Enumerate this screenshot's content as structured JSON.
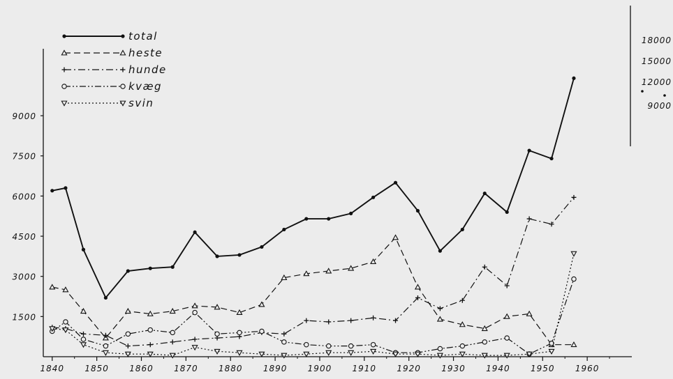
{
  "chart_data": {
    "type": "line",
    "x": [
      1840,
      1843,
      1847,
      1852,
      1857,
      1862,
      1867,
      1872,
      1877,
      1882,
      1887,
      1892,
      1897,
      1902,
      1907,
      1912,
      1917,
      1922,
      1927,
      1932,
      1937,
      1942,
      1947,
      1952,
      1957
    ],
    "xticks": [
      "1840",
      "1850",
      "1860",
      "1870",
      "1880",
      "1890",
      "1900",
      "1910",
      "1920",
      "1930",
      "1940",
      "1950",
      "1960"
    ],
    "xlim": [
      1838,
      1970
    ],
    "yticks": [
      "1500",
      "3000",
      "4500",
      "6000",
      "7500",
      "9000"
    ],
    "ylim": [
      0,
      11500
    ],
    "series": [
      {
        "name": "total",
        "style": "solid",
        "marker": "dot",
        "values": [
          6200,
          6300,
          4000,
          2200,
          3200,
          3300,
          3350,
          4650,
          3750,
          3800,
          4100,
          4750,
          5150,
          5150,
          5350,
          5950,
          6500,
          5450,
          3950,
          4750,
          6100,
          5400,
          7700,
          7400,
          10400
        ]
      },
      {
        "name": "heste",
        "style": "dashed",
        "marker": "triangle-up",
        "values": [
          2600,
          2500,
          1700,
          700,
          1700,
          1600,
          1700,
          1900,
          1850,
          1650,
          1950,
          2950,
          3100,
          3200,
          3300,
          3550,
          4450,
          2600,
          1400,
          1200,
          1050,
          1500,
          1600,
          450,
          450
        ]
      },
      {
        "name": "hunde",
        "style": "dashdot",
        "marker": "plus",
        "values": [
          1100,
          1050,
          850,
          800,
          400,
          450,
          550,
          650,
          700,
          750,
          900,
          850,
          1350,
          1300,
          1350,
          1450,
          1350,
          2200,
          1800,
          2100,
          3350,
          2650,
          5150,
          4950,
          5950
        ]
      },
      {
        "name": "kvæg",
        "style": "dashdotdot",
        "marker": "circle",
        "values": [
          950,
          1300,
          650,
          400,
          850,
          1000,
          900,
          1650,
          850,
          900,
          950,
          550,
          450,
          400,
          400,
          450,
          150,
          150,
          300,
          400,
          550,
          700,
          100,
          500,
          2900
        ]
      },
      {
        "name": "svin",
        "style": "dotted",
        "marker": "triangle-down",
        "values": [
          1050,
          1000,
          450,
          150,
          100,
          100,
          50,
          350,
          200,
          150,
          100,
          50,
          100,
          150,
          150,
          200,
          100,
          100,
          50,
          100,
          50,
          50,
          100,
          200,
          3850
        ]
      }
    ],
    "inset_axis": {
      "ticks": [
        "18000",
        "15000",
        "12000",
        "9000"
      ]
    },
    "grid": false,
    "legend_position": "top-left"
  }
}
